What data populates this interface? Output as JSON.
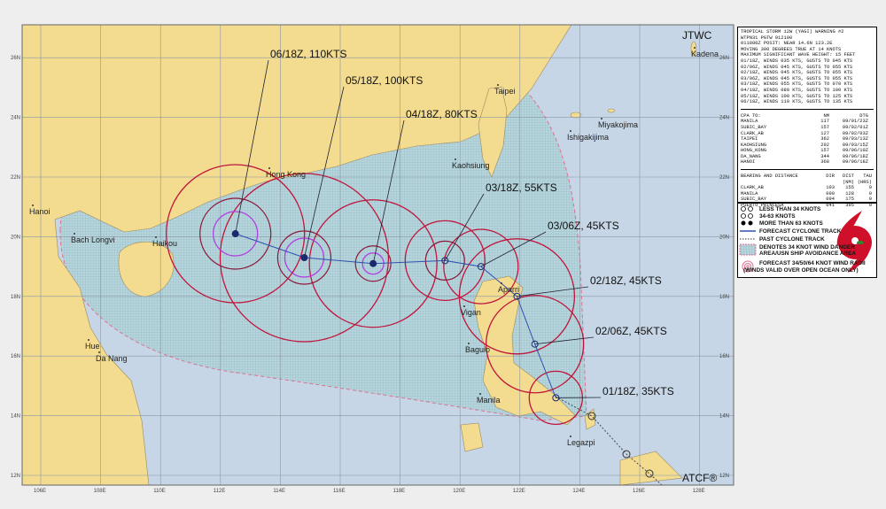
{
  "colors": {
    "ocean": "#c6d6e6",
    "land": "#f3dc8f",
    "grid": "#8a96a4",
    "radii34": "#c0143c",
    "radii50": "#8b1a3a",
    "radii64": "#b040e0",
    "track": "#3050b0",
    "danger": "#e07090"
  },
  "map": {
    "agency": "JTWC",
    "software": "ATCF®",
    "lat_ticks": [
      "26N",
      "24N",
      "22N",
      "20N",
      "18N",
      "16N",
      "14N",
      "12N"
    ],
    "lon_ticks": [
      "106E",
      "108E",
      "110E",
      "112E",
      "114E",
      "116E",
      "118E",
      "120E",
      "122E",
      "124E",
      "126E",
      "128E"
    ],
    "cities": [
      "Kadena",
      "Taipei",
      "Miyakojima",
      "Ishigakijima",
      "Kaohsiung",
      "Hong Kong",
      "Hanoi",
      "Bach Longvi",
      "Haikou",
      "Aparri",
      "Vigan",
      "Baguio",
      "Manila",
      "Legazpi",
      "Hue",
      "Da Nang"
    ],
    "forecast_points": [
      {
        "label": "01/18Z, 35KTS",
        "lat": 14.6,
        "lon": 123.2
      },
      {
        "label": "02/06Z, 45KTS",
        "lat": 16.4,
        "lon": 122.5
      },
      {
        "label": "02/18Z, 45KTS",
        "lat": 18.0,
        "lon": 121.9
      },
      {
        "label": "03/06Z, 45KTS",
        "lat": 19.0,
        "lon": 120.7
      },
      {
        "label": "03/18Z, 55KTS",
        "lat": 19.2,
        "lon": 119.5
      },
      {
        "label": "04/18Z, 80KTS",
        "lat": 19.1,
        "lon": 117.1
      },
      {
        "label": "05/18Z, 100KTS",
        "lat": 19.3,
        "lon": 114.8
      },
      {
        "label": "06/18Z, 110KTS",
        "lat": 20.1,
        "lon": 112.5
      }
    ]
  },
  "panel": {
    "header": [
      "TROPICAL STORM 12W (YAGI) WARNING #2",
      "WTPN31 PGTW 012100",
      "011800Z POSIT: NEAR 14.6N 123.2E",
      "MOVING 300 DEGREES TRUE AT 14 KNOTS",
      "MAXIMUM SIGNIFICANT WAVE HEIGHT: 15 FEET",
      "01/18Z, WINDS 035 KTS, GUSTS TO 045 KTS",
      "02/06Z, WINDS 045 KTS, GUSTS TO 055 KTS",
      "02/18Z, WINDS 045 KTS, GUSTS TO 055 KTS",
      "03/06Z, WINDS 045 KTS, GUSTS TO 055 KTS",
      "03/18Z, WINDS 055 KTS, GUSTS TO 070 KTS",
      "04/18Z, WINDS 080 KTS, GUSTS TO 100 KTS",
      "05/18Z, WINDS 100 KTS, GUSTS TO 125 KTS",
      "06/18Z, WINDS 110 KTS, GUSTS TO 135 KTS"
    ],
    "cpa_header": [
      "CPA TO:",
      "NM",
      "DTG"
    ],
    "cpa": [
      [
        "MANILA",
        "117",
        "09/01/23Z"
      ],
      [
        "SUBIC_BAY",
        "157",
        "09/02/01Z"
      ],
      [
        "CLARK_AB",
        "127",
        "09/02/03Z"
      ],
      [
        "TAIPEI",
        "362",
        "09/03/13Z"
      ],
      [
        "KAOHSIUNG",
        "202",
        "09/03/15Z"
      ],
      [
        "HONG_KONG",
        "157",
        "09/06/10Z"
      ],
      [
        "DA_NANG",
        "344",
        "09/06/18Z"
      ],
      [
        "HANOI",
        "368",
        "09/06/18Z"
      ]
    ],
    "bearing_header": [
      "BEARING AND DISTANCE",
      "DIR",
      "DIST",
      "TAU"
    ],
    "bearing_units": [
      "(NM)",
      "(HRS)"
    ],
    "bearing": [
      [
        "CLARK_AB",
        "103",
        "155",
        "0"
      ],
      [
        "MANILA",
        "090",
        "128",
        "0"
      ],
      [
        "SUBIC_BAY",
        "094",
        "175",
        "0"
      ],
      [
        "PUERTO_PRINCESA",
        "041",
        "395",
        "0"
      ]
    ],
    "legend": [
      "LESS THAN 34 KNOTS",
      "34-63 KNOTS",
      "MORE THAN 63 KNOTS",
      "FORECAST CYCLONE TRACK",
      "PAST CYCLONE TRACK",
      "DENOTES 34 KNOT WIND DANGER",
      "AREA/USN SHIP AVOIDANCE AREA",
      "FORECAST 34/50/64 KNOT WIND RADII",
      "(WINDS VALID OVER OPEN OCEAN ONLY)"
    ]
  }
}
